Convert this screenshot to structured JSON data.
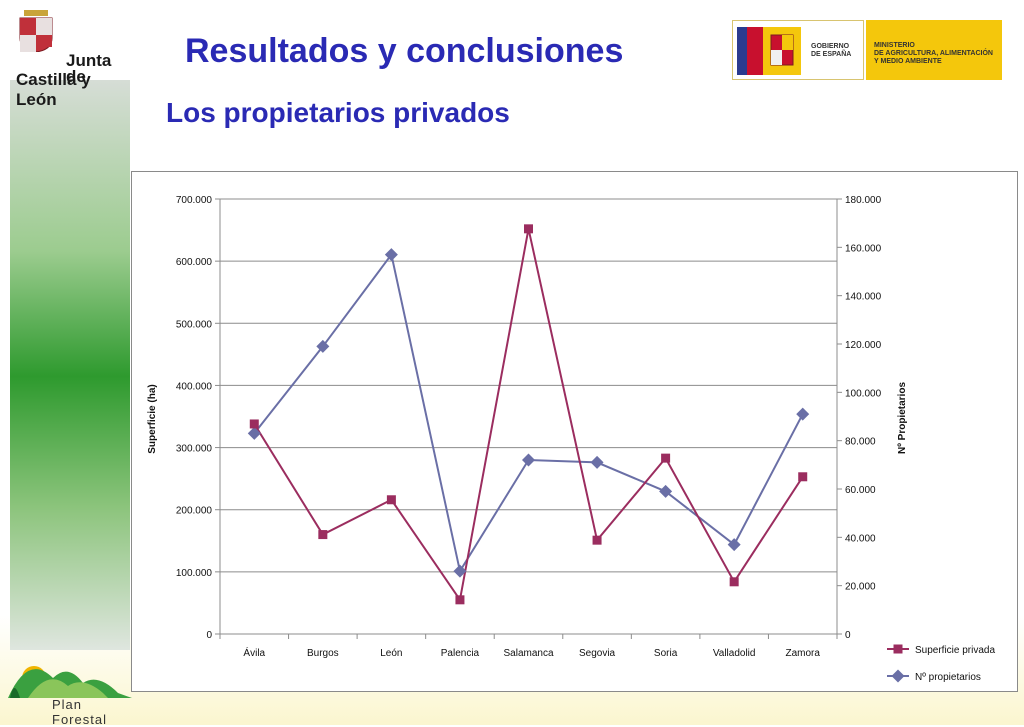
{
  "header": {
    "title": "Resultados y conclusiones",
    "subtitle": "Los propietarios privados"
  },
  "logos": {
    "jcyl_line1": "Junta de",
    "jcyl_line2": "Castilla y León",
    "gov_left": [
      "GOBIERNO",
      "DE ESPAÑA"
    ],
    "gov_right": [
      "MINISTERIO",
      "DE AGRICULTURA, ALIMENTACIÓN",
      "Y MEDIO AMBIENTE"
    ],
    "plan": "Plan Forestal"
  },
  "colors": {
    "title": "#2a2ab4",
    "series_superficie": "#9b2d5f",
    "series_propietarios": "#6a6fa6"
  },
  "chart_data": {
    "type": "line",
    "categories": [
      "Ávila",
      "Burgos",
      "León",
      "Palencia",
      "Salamanca",
      "Segovia",
      "Soria",
      "Valladolid",
      "Zamora"
    ],
    "series": [
      {
        "name": "Superficie privada",
        "axis": "left",
        "marker": "square",
        "values": [
          338000,
          160000,
          216000,
          55000,
          652000,
          151000,
          283000,
          84000,
          253000
        ]
      },
      {
        "name": "Nº propietarios",
        "axis": "right",
        "marker": "diamond",
        "values": [
          83000,
          119000,
          157000,
          26000,
          72000,
          71000,
          59000,
          37000,
          91000
        ]
      }
    ],
    "ylabel": "Superficie (ha)",
    "y2label": "Nº Propietarios",
    "ylim": [
      0,
      700000
    ],
    "y2lim": [
      0,
      180000
    ],
    "yticks": [
      "0",
      "100.000",
      "200.000",
      "300.000",
      "400.000",
      "500.000",
      "600.000",
      "700.000"
    ],
    "y2ticks": [
      "0",
      "20.000",
      "40.000",
      "60.000",
      "80.000",
      "100.000",
      "120.000",
      "140.000",
      "160.000",
      "180.000"
    ],
    "grid": true,
    "legend_position": "bottom-right"
  }
}
